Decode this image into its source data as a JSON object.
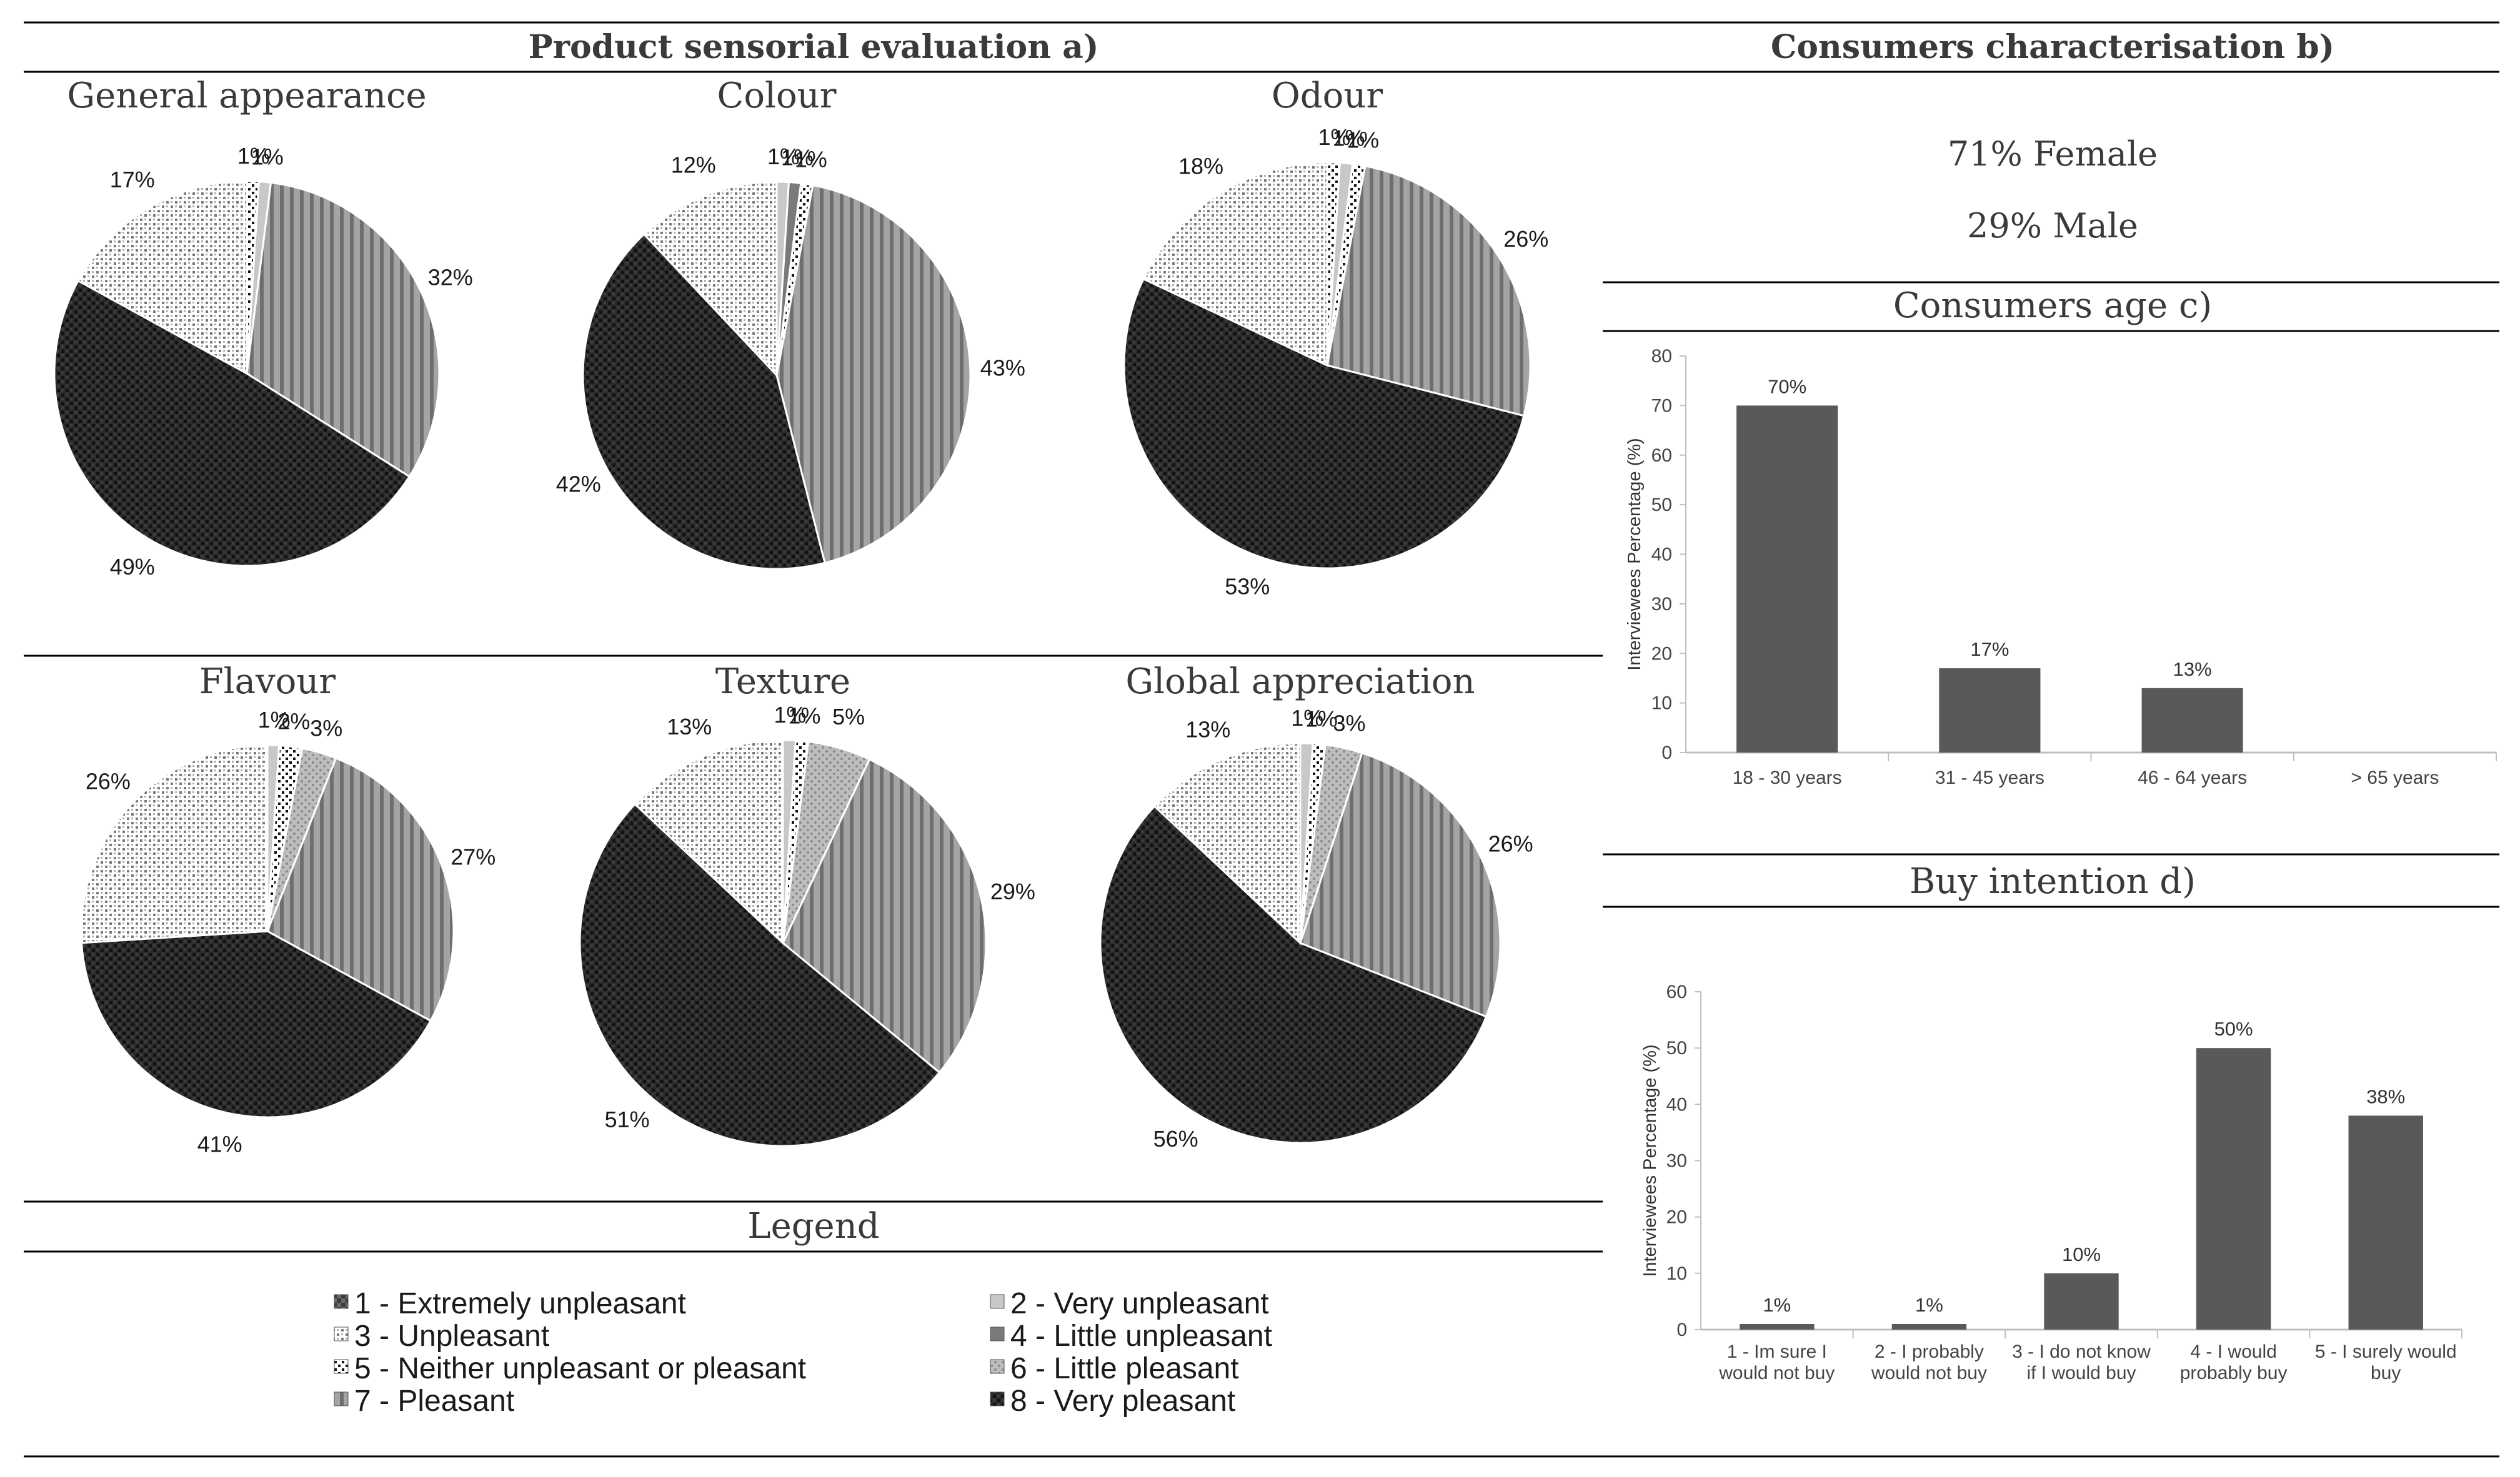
{
  "headers": {
    "sensorial": "Product sensorial evaluation a)",
    "characterisation": "Consumers characterisation b)",
    "legend": "Legend"
  },
  "characterisation": {
    "female": "71% Female",
    "male": "29% Male"
  },
  "colors": {
    "s1": "#5a5a5a",
    "s2": "#c8c8c8",
    "s3": "#e6e6e6",
    "s4": "#7a7a7a",
    "s5": "#222222",
    "s6": "#a8a8a8",
    "s7": "#8a8a8a",
    "s8": "#2a2a2a",
    "bar": "#595959",
    "axis": "#bfbfbf"
  },
  "legend": [
    "1 - Extremely unpleasant",
    "2 - Very unpleasant",
    "3 - Unpleasant",
    "4 - Little unpleasant",
    "5 - Neither unpleasant or pleasant",
    "6 - Little pleasant",
    "7 - Pleasant",
    "8 - Very pleasant"
  ],
  "chart_data": [
    {
      "type": "pie",
      "title": "General appearance",
      "labels": [
        "1",
        "2",
        "3",
        "4",
        "5",
        "6",
        "7",
        "8"
      ],
      "slices": [
        {
          "category": 5,
          "value": 1,
          "label": "1%"
        },
        {
          "category": 2,
          "value": 1,
          "label": "1%"
        },
        {
          "category": 7,
          "value": 32,
          "label": "32%"
        },
        {
          "category": 8,
          "value": 49,
          "label": "49%"
        },
        {
          "category": 3,
          "value": 17,
          "label": "17%"
        }
      ]
    },
    {
      "type": "pie",
      "title": "Colour",
      "slices": [
        {
          "category": 2,
          "value": 1,
          "label": "1%"
        },
        {
          "category": 4,
          "value": 1,
          "label": "1%"
        },
        {
          "category": 5,
          "value": 1,
          "label": "1%"
        },
        {
          "category": 7,
          "value": 43,
          "label": "43%"
        },
        {
          "category": 8,
          "value": 42,
          "label": "42%"
        },
        {
          "category": 3,
          "value": 12,
          "label": "12%"
        }
      ]
    },
    {
      "type": "pie",
      "title": "Odour",
      "slices": [
        {
          "category": 5,
          "value": 1,
          "label": "1%"
        },
        {
          "category": 2,
          "value": 1,
          "label": "1%"
        },
        {
          "category": 5,
          "value": 1,
          "label": "1%"
        },
        {
          "category": 7,
          "value": 26,
          "label": "26%"
        },
        {
          "category": 8,
          "value": 53,
          "label": "53%"
        },
        {
          "category": 3,
          "value": 18,
          "label": "18%"
        }
      ]
    },
    {
      "type": "pie",
      "title": "Flavour",
      "slices": [
        {
          "category": 2,
          "value": 1,
          "label": "1%"
        },
        {
          "category": 5,
          "value": 2,
          "label": "2%"
        },
        {
          "category": 6,
          "value": 3,
          "label": "3%"
        },
        {
          "category": 7,
          "value": 27,
          "label": "27%"
        },
        {
          "category": 8,
          "value": 41,
          "label": "41%"
        },
        {
          "category": 3,
          "value": 26,
          "label": "26%"
        }
      ]
    },
    {
      "type": "pie",
      "title": "Texture",
      "slices": [
        {
          "category": 2,
          "value": 1,
          "label": "1%"
        },
        {
          "category": 5,
          "value": 1,
          "label": "1%"
        },
        {
          "category": 6,
          "value": 5,
          "label": "5%"
        },
        {
          "category": 7,
          "value": 29,
          "label": "29%"
        },
        {
          "category": 8,
          "value": 51,
          "label": "51%"
        },
        {
          "category": 3,
          "value": 13,
          "label": "13%"
        }
      ]
    },
    {
      "type": "pie",
      "title": "Global appreciation",
      "slices": [
        {
          "category": 2,
          "value": 1,
          "label": "1%"
        },
        {
          "category": 5,
          "value": 1,
          "label": "1%"
        },
        {
          "category": 6,
          "value": 3,
          "label": "3%"
        },
        {
          "category": 7,
          "value": 26,
          "label": "26%"
        },
        {
          "category": 8,
          "value": 56,
          "label": "56%"
        },
        {
          "category": 3,
          "value": 13,
          "label": "13%"
        }
      ]
    },
    {
      "type": "bar",
      "title": "Consumers age c)",
      "categories": [
        "18 - 30 years",
        "31 - 45 years",
        "46 - 64 years",
        "> 65 years"
      ],
      "values": [
        70,
        17,
        13,
        null
      ],
      "value_labels": [
        "70%",
        "17%",
        "13%",
        ""
      ],
      "ylabel": "Interviewees Percentage (%)",
      "ylim": [
        0,
        80
      ],
      "yticks": [
        0,
        10,
        20,
        30,
        40,
        50,
        60,
        70,
        80
      ]
    },
    {
      "type": "bar",
      "title": "Buy intention d)",
      "categories": [
        [
          "1 - Im sure I",
          "would not buy"
        ],
        [
          "2 - I probably",
          "would not buy"
        ],
        [
          "3 - I do not know",
          "if I would buy"
        ],
        [
          "4 - I would",
          "probably buy"
        ],
        [
          "5 - I surely would",
          "buy"
        ]
      ],
      "values": [
        1,
        1,
        10,
        50,
        38
      ],
      "value_labels": [
        "1%",
        "1%",
        "10%",
        "50%",
        "38%"
      ],
      "ylabel": "Interviewees Percentage (%)",
      "ylim": [
        0,
        60
      ],
      "yticks": [
        0,
        10,
        20,
        30,
        40,
        50,
        60
      ]
    }
  ]
}
